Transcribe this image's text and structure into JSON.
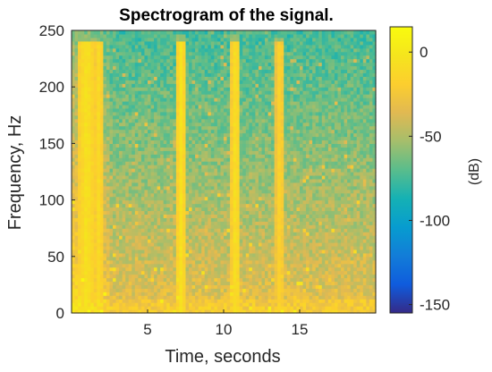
{
  "chart_data": {
    "type": "heatmap",
    "title": "Spectrogram of the signal.",
    "xlabel": "Time, seconds",
    "ylabel": "Frequency, Hz",
    "xlim": [
      0,
      20
    ],
    "ylim": [
      0,
      250
    ],
    "x_ticks": [
      5,
      10,
      15
    ],
    "y_ticks": [
      0,
      50,
      100,
      150,
      200,
      250
    ],
    "grid": false,
    "colormap": "parula",
    "colorbar": {
      "label": "(dB)",
      "range": [
        -155,
        15
      ],
      "ticks": [
        0,
        -50,
        -100,
        -150
      ]
    },
    "background_level_db": {
      "low_frequency": -30,
      "high_frequency": -75
    },
    "impulses": [
      {
        "time": 1.0,
        "width": 0.6,
        "max_frequency": 245,
        "level_db": 0
      },
      {
        "time": 1.8,
        "width": 0.35,
        "max_frequency": 242,
        "level_db": -5
      },
      {
        "time": 7.2,
        "width": 0.3,
        "max_frequency": 248,
        "level_db": 0
      },
      {
        "time": 10.8,
        "width": 0.3,
        "max_frequency": 248,
        "level_db": 0
      },
      {
        "time": 13.7,
        "width": 0.35,
        "max_frequency": 245,
        "level_db": -10
      }
    ]
  },
  "colors": {
    "axis": "#262626",
    "title": "#000000",
    "background": "#ffffff"
  }
}
